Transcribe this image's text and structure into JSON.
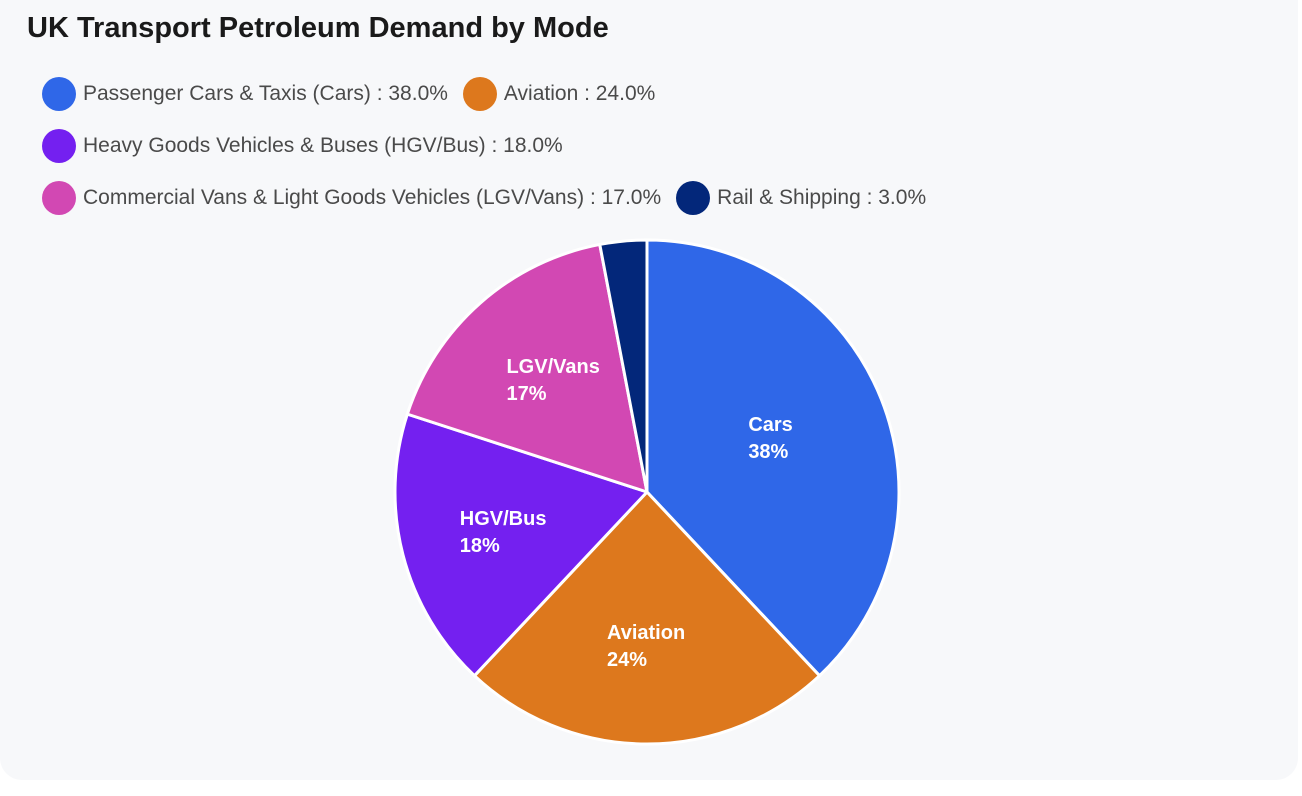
{
  "chart_data": {
    "type": "pie",
    "title": "UK Transport Petroleum Demand by Mode",
    "slices": [
      {
        "legend": "Passenger Cars & Taxis (Cars) : 38.0%",
        "label": "Cars",
        "pct_label": "38%",
        "value": 38.0,
        "color": "#2f67e8"
      },
      {
        "legend": "Aviation : 24.0%",
        "label": "Aviation",
        "pct_label": "24%",
        "value": 24.0,
        "color": "#dd781d"
      },
      {
        "legend": "Heavy Goods Vehicles & Buses (HGV/Bus) : 18.0%",
        "label": "HGV/Bus",
        "pct_label": "18%",
        "value": 18.0,
        "color": "#7420f0"
      },
      {
        "legend": "Commercial Vans & Light Goods Vehicles (LGV/Vans) : 17.0%",
        "label": "LGV/Vans",
        "pct_label": "17%",
        "value": 17.0,
        "color": "#d248b3"
      },
      {
        "legend": "Rail & Shipping : 3.0%",
        "label": "",
        "pct_label": "",
        "value": 3.0,
        "color": "#03277a"
      }
    ],
    "legend_position": "top-left"
  }
}
